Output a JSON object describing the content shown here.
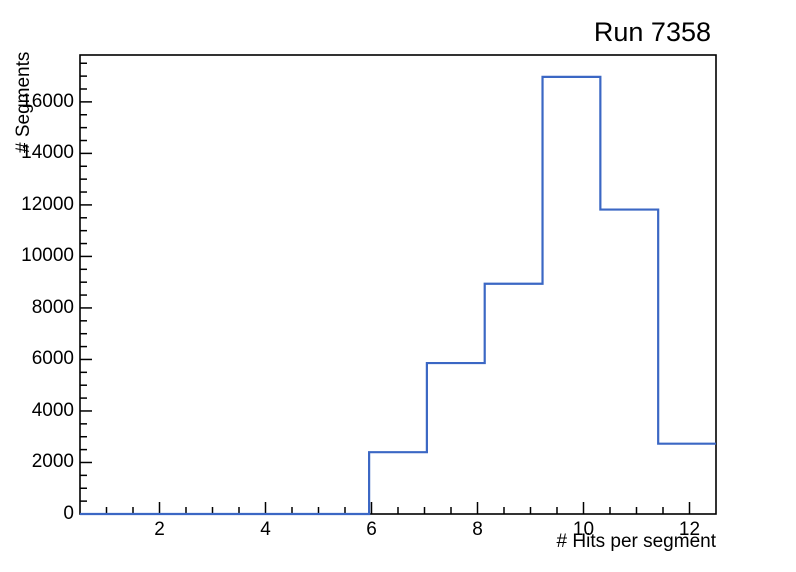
{
  "chart_data": {
    "type": "histogram",
    "title": "Run 7358",
    "xlabel": "# Hits per segment",
    "ylabel": "# Segments",
    "xlim": [
      0.5,
      12.5
    ],
    "ylim": [
      0,
      17820
    ],
    "bin_edges": [
      0.5,
      1.591,
      2.682,
      3.773,
      4.864,
      5.955,
      7.045,
      8.136,
      9.227,
      10.318,
      11.409,
      12.5
    ],
    "counts": [
      0,
      0,
      0,
      0,
      0,
      2400,
      5860,
      8940,
      16970,
      11820,
      2730
    ],
    "x_major_ticks": [
      2,
      4,
      6,
      8,
      10,
      12
    ],
    "x_minor_step": 0.5,
    "y_major_ticks": [
      0,
      2000,
      4000,
      6000,
      8000,
      10000,
      12000,
      14000,
      16000
    ],
    "y_minor_step": 500,
    "grid": false,
    "line_color": "#3B67C4",
    "axis_color": "#000000",
    "background_color": "#ffffff"
  }
}
